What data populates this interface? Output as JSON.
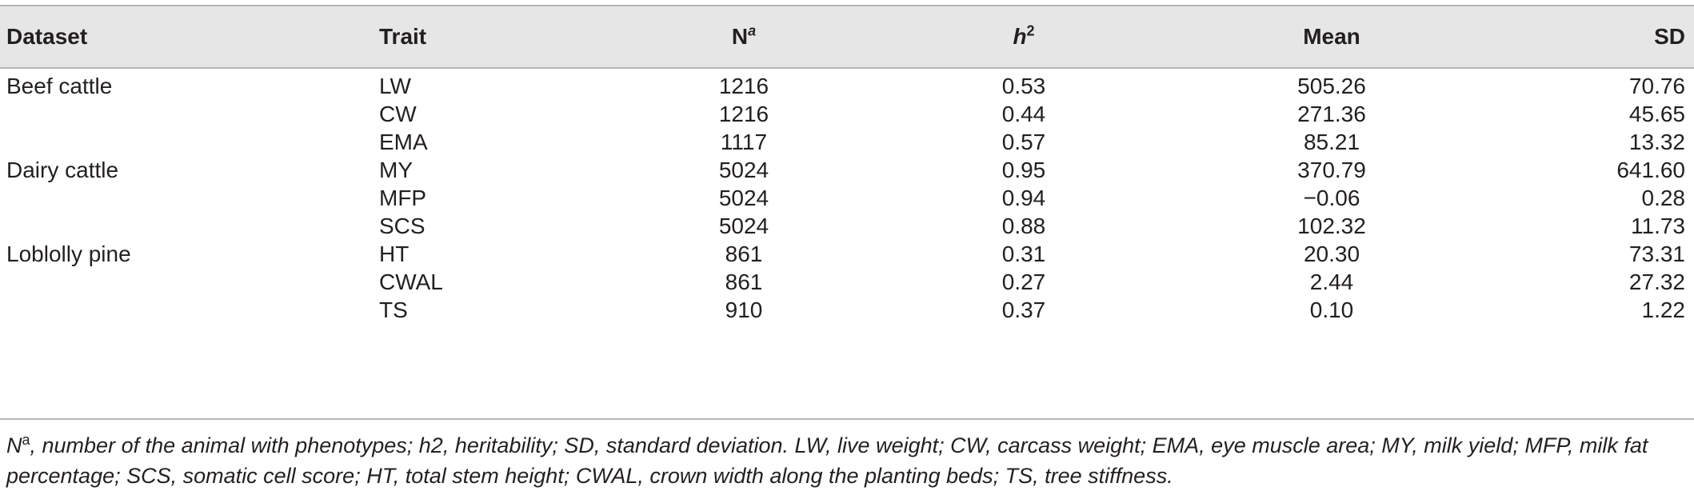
{
  "table": {
    "headers": {
      "dataset": "Dataset",
      "trait": "Trait",
      "n": "N",
      "n_sup": "a",
      "h2": "h",
      "h2_sup": "2",
      "mean": "Mean",
      "sd": "SD"
    },
    "rows": [
      {
        "dataset": "Beef cattle",
        "trait": "LW",
        "n": "1216",
        "h2": "0.53",
        "mean": "505.26",
        "sd": "70.76"
      },
      {
        "dataset": "",
        "trait": "CW",
        "n": "1216",
        "h2": "0.44",
        "mean": "271.36",
        "sd": "45.65"
      },
      {
        "dataset": "",
        "trait": "EMA",
        "n": "1117",
        "h2": "0.57",
        "mean": "85.21",
        "sd": "13.32"
      },
      {
        "dataset": "Dairy cattle",
        "trait": "MY",
        "n": "5024",
        "h2": "0.95",
        "mean": "370.79",
        "sd": "641.60"
      },
      {
        "dataset": "",
        "trait": "MFP",
        "n": "5024",
        "h2": "0.94",
        "mean": "−0.06",
        "sd": "0.28"
      },
      {
        "dataset": "",
        "trait": "SCS",
        "n": "5024",
        "h2": "0.88",
        "mean": "102.32",
        "sd": "11.73"
      },
      {
        "dataset": "Loblolly pine",
        "trait": "HT",
        "n": "861",
        "h2": "0.31",
        "mean": "20.30",
        "sd": "73.31"
      },
      {
        "dataset": "",
        "trait": "CWAL",
        "n": "861",
        "h2": "0.27",
        "mean": "2.44",
        "sd": "27.32"
      },
      {
        "dataset": "",
        "trait": "TS",
        "n": "910",
        "h2": "0.37",
        "mean": "0.10",
        "sd": "1.22"
      }
    ]
  },
  "footnote": {
    "n_symbol": "N",
    "n_sup": "a",
    "text": ", number of the animal with phenotypes; h2, heritability; SD, standard deviation. LW, live weight; CW, carcass weight; EMA, eye muscle area; MY, milk yield; MFP, milk fat percentage; SCS, somatic cell score; HT, total stem height; CWAL, crown width along the planting beds; TS, tree stiffness."
  }
}
